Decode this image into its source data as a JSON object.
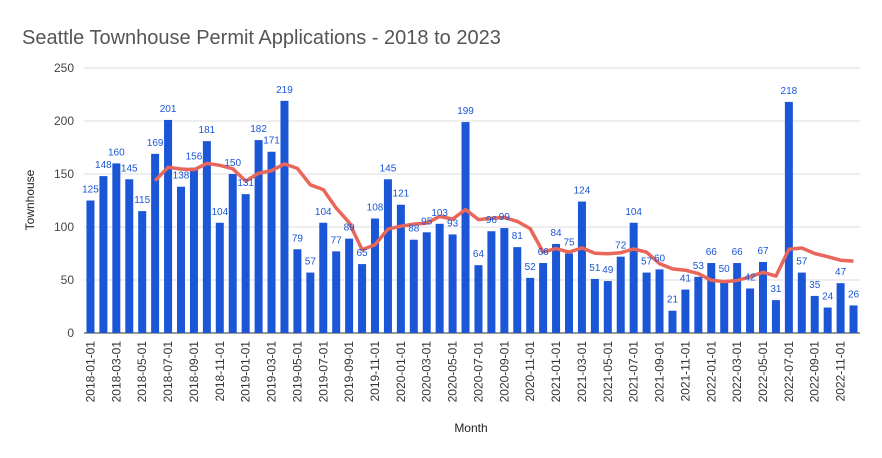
{
  "chart_data": {
    "type": "bar",
    "title": "Seattle Townhouse Permit Applications - 2018 to 2023",
    "x_label": "Month",
    "y_label": "Townhouse",
    "categories": [
      "2018-01-01",
      null,
      "2018-03-01",
      null,
      "2018-05-01",
      null,
      "2018-07-01",
      null,
      "2018-09-01",
      null,
      "2018-11-01",
      null,
      "2019-01-01",
      null,
      "2019-03-01",
      null,
      "2019-05-01",
      null,
      "2019-07-01",
      null,
      "2019-09-01",
      null,
      "2019-11-01",
      null,
      "2020-01-01",
      null,
      "2020-03-01",
      null,
      "2020-05-01",
      null,
      "2020-07-01",
      null,
      "2020-09-01",
      null,
      "2020-11-01",
      null,
      "2021-01-01",
      null,
      "2021-03-01",
      null,
      "2021-05-01",
      null,
      "2021-07-01",
      null,
      "2021-09-01",
      null,
      "2021-11-01",
      null,
      "2022-01-01",
      null,
      "2022-03-01",
      null,
      "2022-05-01",
      null,
      "2022-07-01",
      null,
      "2022-09-01",
      null,
      "2022-11-01",
      null
    ],
    "series": [
      {
        "type": "bar",
        "color": "#1a56d6",
        "values": [
          125,
          148,
          160,
          145,
          115,
          169,
          201,
          138,
          156,
          181,
          104,
          150,
          131,
          182,
          171,
          219,
          79,
          57,
          104,
          77,
          89,
          65,
          108,
          145,
          121,
          88,
          95,
          103,
          93,
          199,
          64,
          96,
          99,
          81,
          52,
          66,
          84,
          75,
          124,
          51,
          49,
          72,
          104,
          57,
          60,
          21,
          41,
          53,
          66,
          50,
          66,
          42,
          67,
          31,
          218,
          57,
          35,
          24,
          47,
          26
        ]
      },
      {
        "type": "line",
        "color": "#e8665a",
        "values": [
          null,
          null,
          null,
          null,
          null,
          143.7,
          156.3,
          154.7,
          154.0,
          160.0,
          158.2,
          155.0,
          143.3,
          150.7,
          153.2,
          159.5,
          155.3,
          139.8,
          135.3,
          117.8,
          104.2,
          78.5,
          83.3,
          98.0,
          100.8,
          102.7,
          103.7,
          110.0,
          107.5,
          116.5,
          107.0,
          108.3,
          109.0,
          105.3,
          98.5,
          76.3,
          79.7,
          76.2,
          80.3,
          75.3,
          74.8,
          75.8,
          79.2,
          76.2,
          65.5,
          60.5,
          59.2,
          56.0,
          49.7,
          48.5,
          49.5,
          53.0,
          57.3,
          53.7,
          79.0,
          80.2,
          75.0,
          72.0,
          68.7,
          67.8
        ]
      }
    ],
    "ylim": [
      0,
      250
    ],
    "yticks": [
      0,
      50,
      100,
      150,
      200,
      250
    ],
    "grid": true
  }
}
